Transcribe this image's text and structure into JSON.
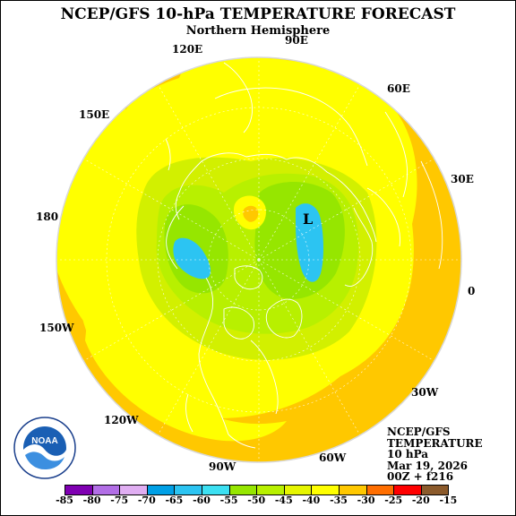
{
  "title": "NCEP/GFS 10-hPa TEMPERATURE FORECAST",
  "subtitle": "Northern Hemisphere",
  "longitude_labels": [
    "90E",
    "120E",
    "60E",
    "150E",
    "30E",
    "180",
    "0",
    "150W",
    "30W",
    "120W",
    "90W",
    "60W"
  ],
  "low_marker": "L",
  "info": {
    "model": "NCEP/GFS",
    "variable": "TEMPERATURE",
    "level": "10 hPa",
    "date": "Mar 19, 2026",
    "cycle": "00Z + f216"
  },
  "logo_text": "NOAA",
  "colorbar": {
    "labels": [
      "-85",
      "-80",
      "-75",
      "-70",
      "-65",
      "-60",
      "-55",
      "-50",
      "-45",
      "-40",
      "-35",
      "-30",
      "-25",
      "-20",
      "-15"
    ],
    "colors": [
      "#7f00b2",
      "#b26ee6",
      "#e0aef2",
      "#00a0e6",
      "#2cc4f2",
      "#3ce0f2",
      "#96e600",
      "#b8f000",
      "#e6f500",
      "#ffff00",
      "#ffc800",
      "#ff6e00",
      "#ff0000",
      "#8b5a2b"
    ]
  },
  "colors": {
    "ocean_fill": "#ffc800",
    "band_yellow": "#ffff00",
    "band_yellowgreen": "#d2f000",
    "band_lightgreen": "#b8f000",
    "band_green": "#96e600",
    "band_blue": "#2cc4f2",
    "coastline": "#ffffff"
  }
}
